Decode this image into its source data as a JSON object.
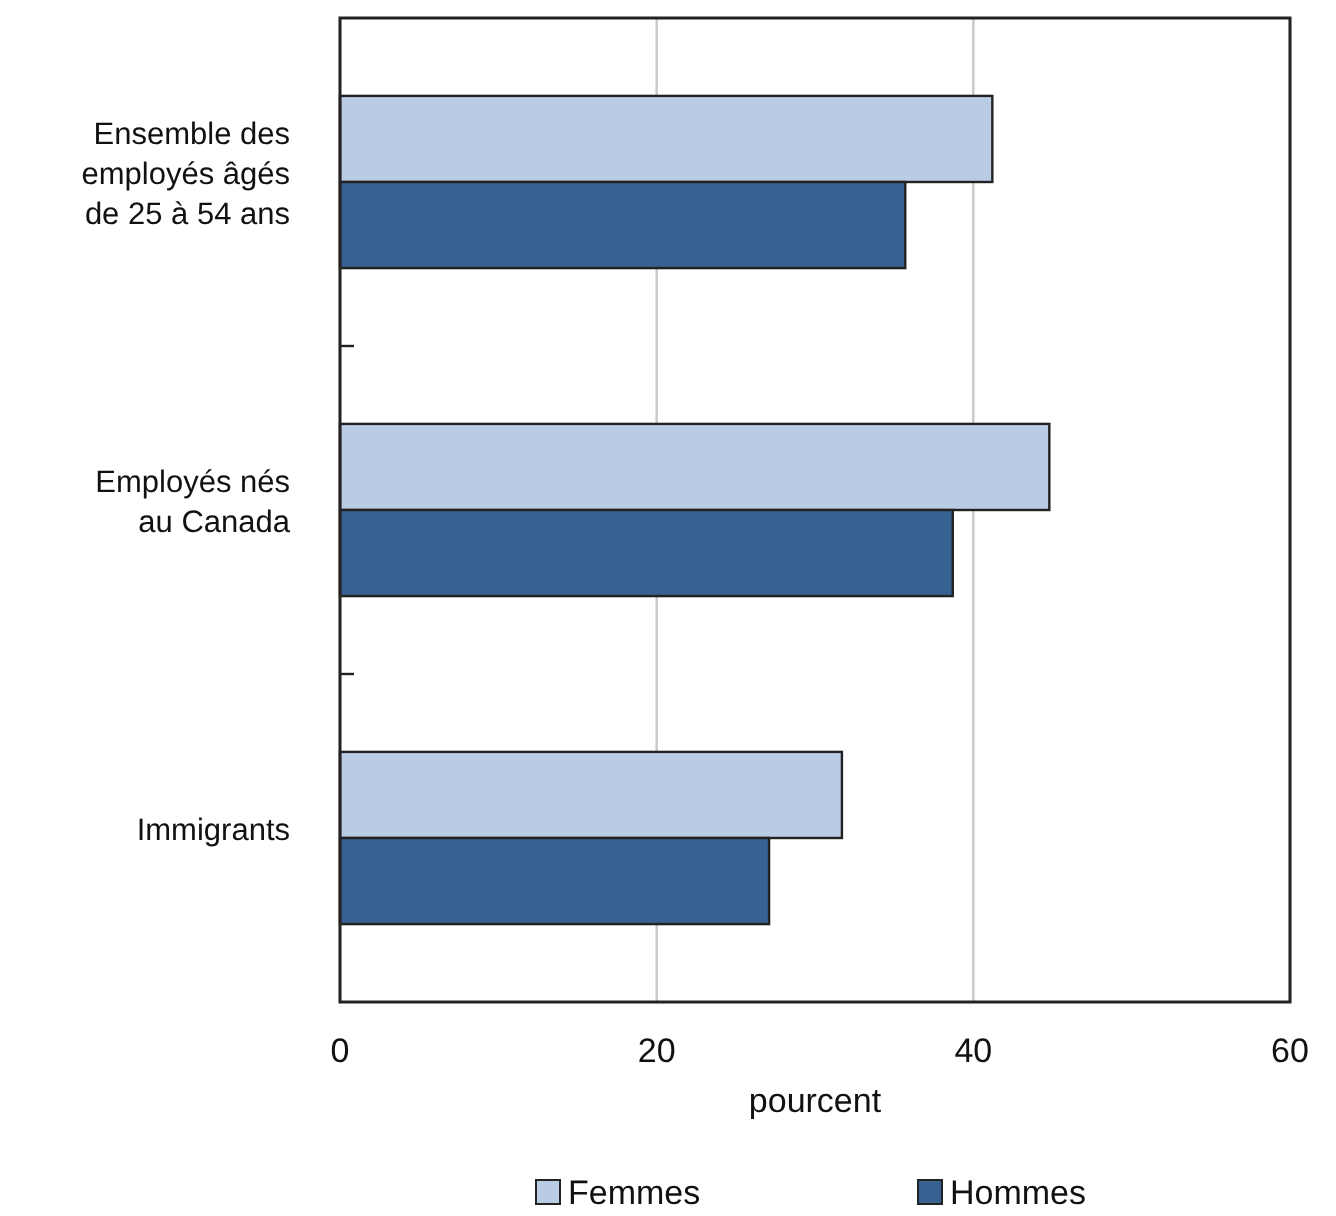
{
  "chart_data": {
    "type": "bar",
    "orientation": "horizontal",
    "categories": [
      "Ensemble des employés âgés de 25 à 54 ans",
      "Employés nés au Canada",
      "Immigrants"
    ],
    "series": [
      {
        "name": "Femmes",
        "color": "#b9cce3",
        "values": [
          41.2,
          44.8,
          31.7
        ]
      },
      {
        "name": "Hommes",
        "color": "#366190",
        "values": [
          35.7,
          38.7,
          27.1
        ]
      }
    ],
    "xlabel": "pourcent",
    "xlim": [
      0,
      60
    ],
    "xticks": [
      0,
      20,
      40,
      60
    ],
    "grid": "x",
    "legend": "bottom"
  }
}
